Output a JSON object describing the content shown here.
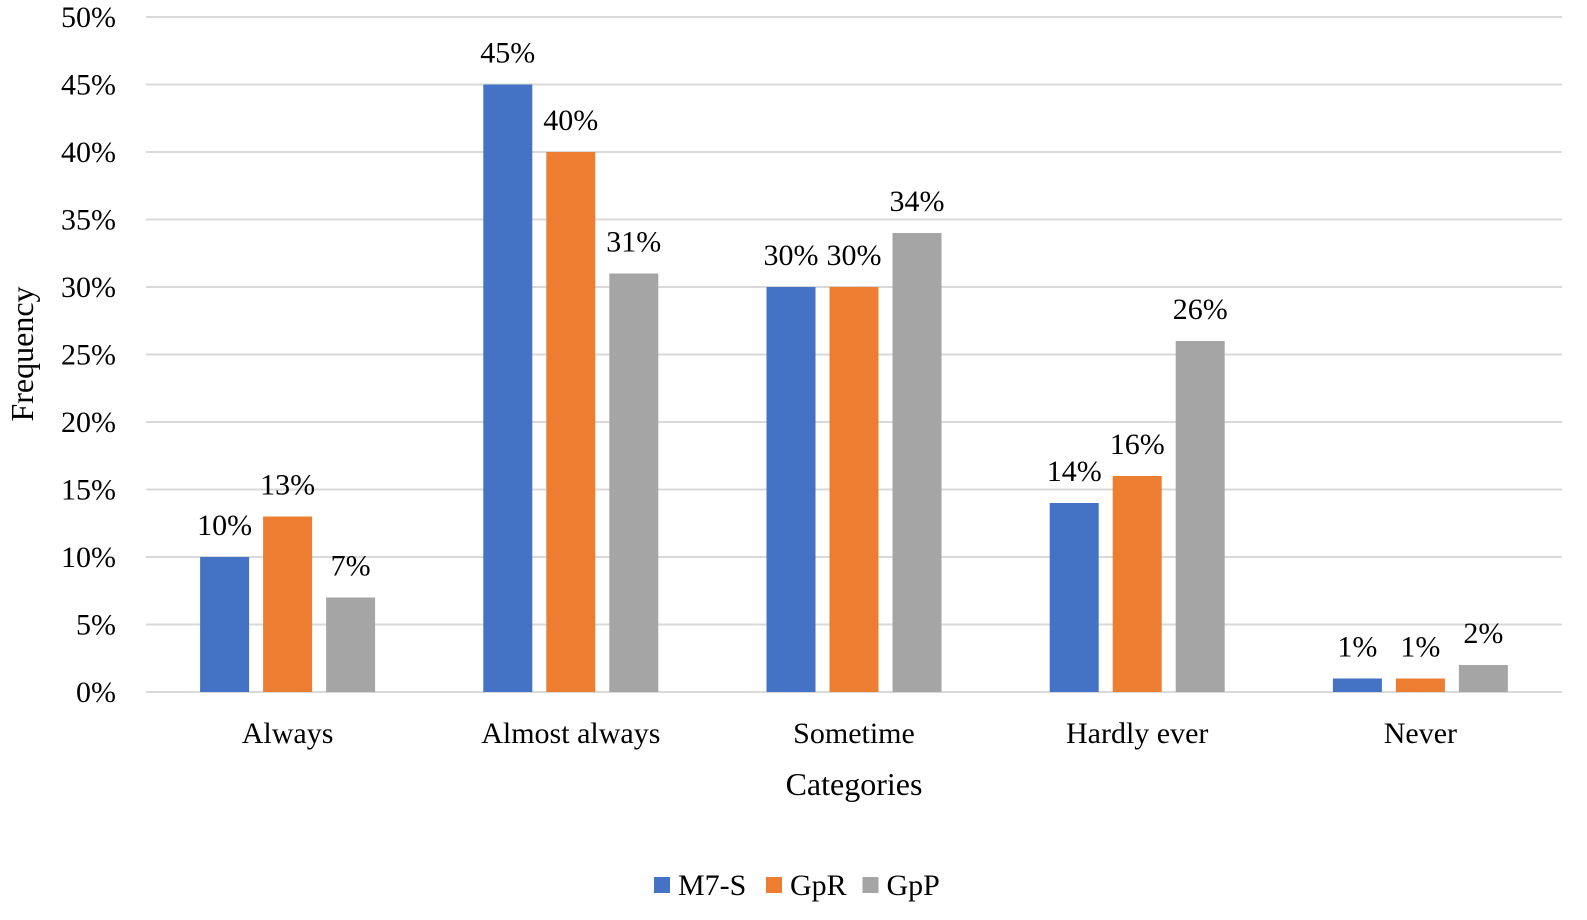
{
  "chart_data": {
    "type": "bar",
    "categories": [
      "Always",
      "Almost always",
      "Sometime",
      "Hardly ever",
      "Never"
    ],
    "series": [
      {
        "name": "M7-S",
        "color": "#4472C4",
        "values": [
          10,
          45,
          30,
          14,
          1
        ],
        "labels": [
          "10%",
          "45%",
          "30%",
          "14%",
          "1%"
        ]
      },
      {
        "name": "GpR",
        "color": "#ED7D31",
        "values": [
          13,
          40,
          30,
          16,
          1
        ],
        "labels": [
          "13%",
          "40%",
          "30%",
          "16%",
          "1%"
        ]
      },
      {
        "name": "GpP",
        "color": "#A5A5A5",
        "values": [
          7,
          31,
          34,
          26,
          2
        ],
        "labels": [
          "7%",
          "31%",
          "34%",
          "26%",
          "2%"
        ]
      }
    ],
    "title": "",
    "xlabel": "Categories",
    "ylabel": "Frequency",
    "ylim": [
      0,
      50
    ],
    "yticks": [
      0,
      5,
      10,
      15,
      20,
      25,
      30,
      35,
      40,
      45,
      50
    ],
    "ytick_labels": [
      "0%",
      "5%",
      "10%",
      "15%",
      "20%",
      "25%",
      "30%",
      "35%",
      "40%",
      "45%",
      "50%"
    ],
    "grid": true,
    "gridline_color": "#D9D9D9",
    "legend_position": "bottom"
  }
}
